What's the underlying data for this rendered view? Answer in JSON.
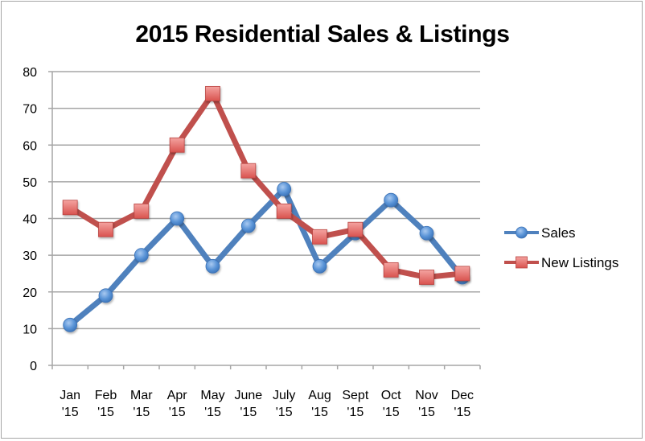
{
  "chart_data": {
    "type": "line",
    "title": "2015 Residential Sales & Listings",
    "xlabel": "",
    "ylabel": "",
    "categories": [
      "Jan '15",
      "Feb '15",
      "Mar '15",
      "Apr '15",
      "May '15",
      "June '15",
      "July '15",
      "Aug '15",
      "Sept '15",
      "Oct '15",
      "Nov '15",
      "Dec '15"
    ],
    "category_lines": [
      [
        "Jan",
        "'15"
      ],
      [
        "Feb",
        "'15"
      ],
      [
        "Mar",
        "'15"
      ],
      [
        "Apr",
        "'15"
      ],
      [
        "May",
        "'15"
      ],
      [
        "June",
        "'15"
      ],
      [
        "July",
        "'15"
      ],
      [
        "Aug",
        "'15"
      ],
      [
        "Sept",
        "'15"
      ],
      [
        "Oct",
        "'15"
      ],
      [
        "Nov",
        "'15"
      ],
      [
        "Dec",
        "'15"
      ]
    ],
    "series": [
      {
        "name": "Sales",
        "color": "#4f81bd",
        "marker": "circle",
        "values": [
          11,
          19,
          30,
          40,
          27,
          38,
          48,
          27,
          36,
          45,
          36,
          24
        ]
      },
      {
        "name": "New Listings",
        "color": "#c0504d",
        "marker": "square",
        "values": [
          43,
          37,
          42,
          60,
          74,
          53,
          42,
          35,
          37,
          26,
          24,
          25
        ]
      }
    ],
    "ylim": [
      0,
      80
    ],
    "yticks": [
      0,
      10,
      20,
      30,
      40,
      50,
      60,
      70,
      80
    ],
    "grid": true,
    "legend_position": "right"
  }
}
